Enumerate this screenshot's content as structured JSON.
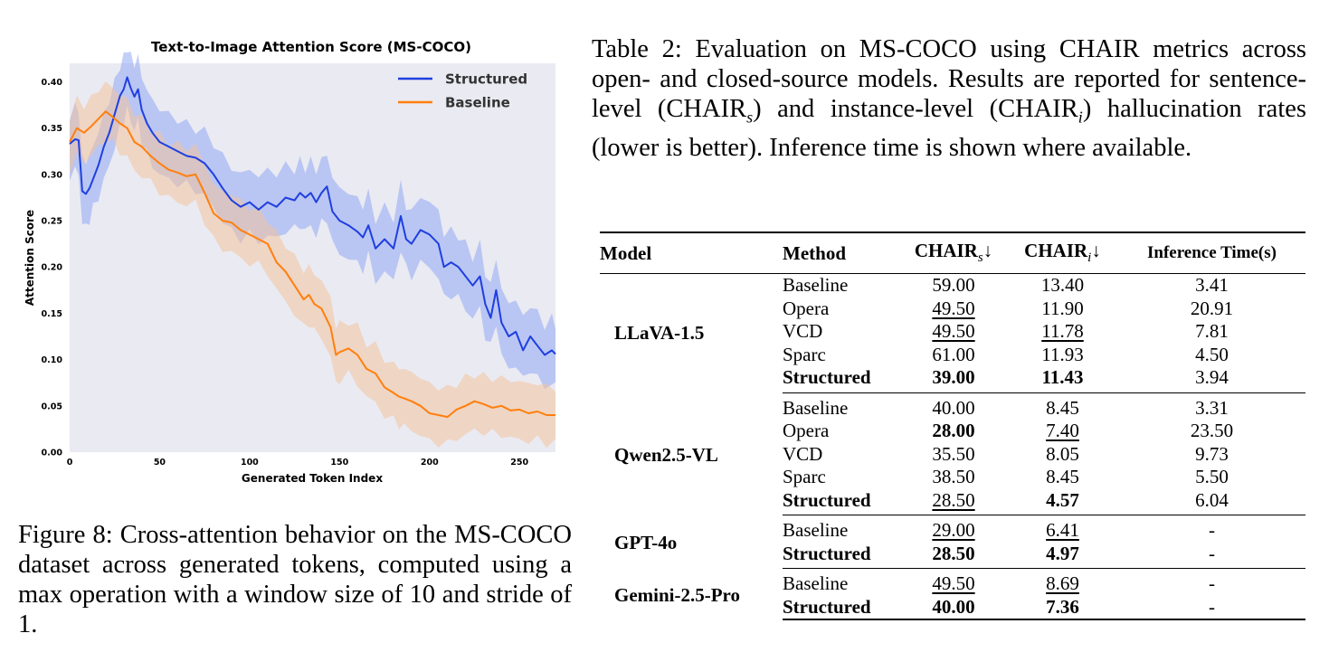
{
  "figure": {
    "caption": "Figure 8: Cross-attention behavior on the MS-COCO dataset across generated tokens, computed using a max operation with a window size of 10 and stride of 1."
  },
  "chart_data": {
    "type": "line",
    "title": "Text-to-Image Attention Score (MS-COCO)",
    "xlabel": "Generated Token Index",
    "ylabel": "Attention Score",
    "xlim": [
      0,
      270
    ],
    "ylim": [
      0,
      0.42
    ],
    "xticks": [
      0,
      50,
      100,
      150,
      200,
      250
    ],
    "yticks": [
      "0.00",
      "0.05",
      "0.10",
      "0.15",
      "0.20",
      "0.25",
      "0.30",
      "0.35",
      "0.40"
    ],
    "grid": false,
    "legend_position": "top-right",
    "background": "#eaeaf2",
    "series": [
      {
        "name": "Structured",
        "color": "#1f3fe0",
        "band_color": "#8fa8f4",
        "band_halfwidth": 0.025,
        "x": [
          0,
          3,
          5,
          7,
          9,
          11,
          13,
          16,
          19,
          22,
          25,
          28,
          30,
          32,
          34,
          36,
          38,
          40,
          43,
          46,
          50,
          55,
          60,
          65,
          70,
          75,
          80,
          85,
          90,
          95,
          100,
          105,
          110,
          115,
          120,
          125,
          128,
          131,
          134,
          137,
          140,
          143,
          146,
          150,
          155,
          160,
          163,
          166,
          170,
          175,
          180,
          184,
          187,
          190,
          195,
          200,
          205,
          208,
          212,
          216,
          220,
          224,
          228,
          231,
          234,
          237,
          240,
          244,
          248,
          252,
          256,
          260,
          264,
          268,
          270
        ],
        "y": [
          0.333,
          0.338,
          0.337,
          0.282,
          0.279,
          0.285,
          0.295,
          0.31,
          0.33,
          0.345,
          0.365,
          0.385,
          0.392,
          0.405,
          0.393,
          0.384,
          0.392,
          0.37,
          0.355,
          0.345,
          0.335,
          0.33,
          0.325,
          0.32,
          0.318,
          0.312,
          0.3,
          0.285,
          0.272,
          0.265,
          0.27,
          0.262,
          0.27,
          0.265,
          0.275,
          0.272,
          0.28,
          0.275,
          0.28,
          0.27,
          0.28,
          0.287,
          0.26,
          0.25,
          0.245,
          0.238,
          0.232,
          0.245,
          0.22,
          0.23,
          0.22,
          0.255,
          0.23,
          0.225,
          0.24,
          0.235,
          0.225,
          0.2,
          0.205,
          0.2,
          0.19,
          0.18,
          0.19,
          0.16,
          0.145,
          0.175,
          0.14,
          0.125,
          0.13,
          0.11,
          0.125,
          0.115,
          0.105,
          0.11,
          0.106
        ]
      },
      {
        "name": "Baseline",
        "color": "#ff7f0e",
        "band_color": "#f3c29c",
        "band_halfwidth": 0.022,
        "x": [
          0,
          4,
          8,
          12,
          16,
          20,
          24,
          28,
          32,
          36,
          40,
          45,
          50,
          55,
          60,
          65,
          70,
          75,
          80,
          85,
          90,
          95,
          100,
          105,
          110,
          115,
          120,
          125,
          130,
          133,
          136,
          140,
          145,
          148,
          150,
          155,
          160,
          165,
          170,
          175,
          180,
          183,
          186,
          190,
          195,
          200,
          205,
          210,
          215,
          220,
          225,
          230,
          235,
          240,
          245,
          250,
          255,
          260,
          265,
          270
        ],
        "y": [
          0.335,
          0.35,
          0.345,
          0.352,
          0.36,
          0.368,
          0.362,
          0.355,
          0.35,
          0.335,
          0.33,
          0.32,
          0.312,
          0.305,
          0.302,
          0.298,
          0.3,
          0.28,
          0.258,
          0.25,
          0.248,
          0.24,
          0.235,
          0.23,
          0.225,
          0.205,
          0.195,
          0.18,
          0.165,
          0.17,
          0.16,
          0.155,
          0.135,
          0.105,
          0.108,
          0.112,
          0.105,
          0.09,
          0.085,
          0.07,
          0.064,
          0.06,
          0.058,
          0.055,
          0.05,
          0.042,
          0.04,
          0.038,
          0.046,
          0.05,
          0.055,
          0.052,
          0.048,
          0.05,
          0.045,
          0.046,
          0.042,
          0.044,
          0.04,
          0.04
        ]
      }
    ]
  },
  "table": {
    "caption_parts": [
      "Table 2: Evaluation on MS-COCO using CHAIR metrics across open- and closed-source models. Results are reported for sentence-level (CHAIR",
      "s",
      ") and instance-level (CHAIR",
      "i",
      ") hallucination rates (lower is better). Inference time is shown where available."
    ],
    "header": {
      "model": "Model",
      "method": "Method",
      "chair_s": "CHAIR",
      "chair_s_sub": "s",
      "chair_i": "CHAIR",
      "chair_i_sub": "i",
      "arrow": "↓",
      "time": "Inference Time(s)"
    },
    "groups": [
      {
        "model": "LLaVA-1.5",
        "rows": [
          {
            "method": "Baseline",
            "chair_s": "59.00",
            "chair_i": "13.40",
            "time": "3.41",
            "s_style": "",
            "i_style": "",
            "method_bold": false
          },
          {
            "method": "Opera",
            "chair_s": "49.50",
            "chair_i": "11.90",
            "time": "20.91",
            "s_style": "u",
            "i_style": "",
            "method_bold": false
          },
          {
            "method": "VCD",
            "chair_s": "49.50",
            "chair_i": "11.78",
            "time": "7.81",
            "s_style": "u",
            "i_style": "u",
            "method_bold": false
          },
          {
            "method": "Sparc",
            "chair_s": "61.00",
            "chair_i": "11.93",
            "time": "4.50",
            "s_style": "",
            "i_style": "",
            "method_bold": false
          },
          {
            "method": "Structured",
            "chair_s": "39.00",
            "chair_i": "11.43",
            "time": "3.94",
            "s_style": "b",
            "i_style": "b",
            "method_bold": true
          }
        ]
      },
      {
        "model": "Qwen2.5-VL",
        "rows": [
          {
            "method": "Baseline",
            "chair_s": "40.00",
            "chair_i": "8.45",
            "time": "3.31",
            "s_style": "",
            "i_style": "",
            "method_bold": false
          },
          {
            "method": "Opera",
            "chair_s": "28.00",
            "chair_i": "7.40",
            "time": "23.50",
            "s_style": "b",
            "i_style": "u",
            "method_bold": false
          },
          {
            "method": "VCD",
            "chair_s": "35.50",
            "chair_i": "8.05",
            "time": "9.73",
            "s_style": "",
            "i_style": "",
            "method_bold": false
          },
          {
            "method": "Sparc",
            "chair_s": "38.50",
            "chair_i": "8.45",
            "time": "5.50",
            "s_style": "",
            "i_style": "",
            "method_bold": false
          },
          {
            "method": "Structured",
            "chair_s": "28.50",
            "chair_i": "4.57",
            "time": "6.04",
            "s_style": "u",
            "i_style": "b",
            "method_bold": true
          }
        ]
      },
      {
        "model": "GPT-4o",
        "rows": [
          {
            "method": "Baseline",
            "chair_s": "29.00",
            "chair_i": "6.41",
            "time": "-",
            "s_style": "u",
            "i_style": "u",
            "method_bold": false
          },
          {
            "method": "Structured",
            "chair_s": "28.50",
            "chair_i": "4.97",
            "time": "-",
            "s_style": "b",
            "i_style": "b",
            "method_bold": true
          }
        ]
      },
      {
        "model": "Gemini-2.5-Pro",
        "rows": [
          {
            "method": "Baseline",
            "chair_s": "49.50",
            "chair_i": "8.69",
            "time": "-",
            "s_style": "u",
            "i_style": "u",
            "method_bold": false
          },
          {
            "method": "Structured",
            "chair_s": "40.00",
            "chair_i": "7.36",
            "time": "-",
            "s_style": "b",
            "i_style": "b",
            "method_bold": true
          }
        ]
      }
    ]
  }
}
